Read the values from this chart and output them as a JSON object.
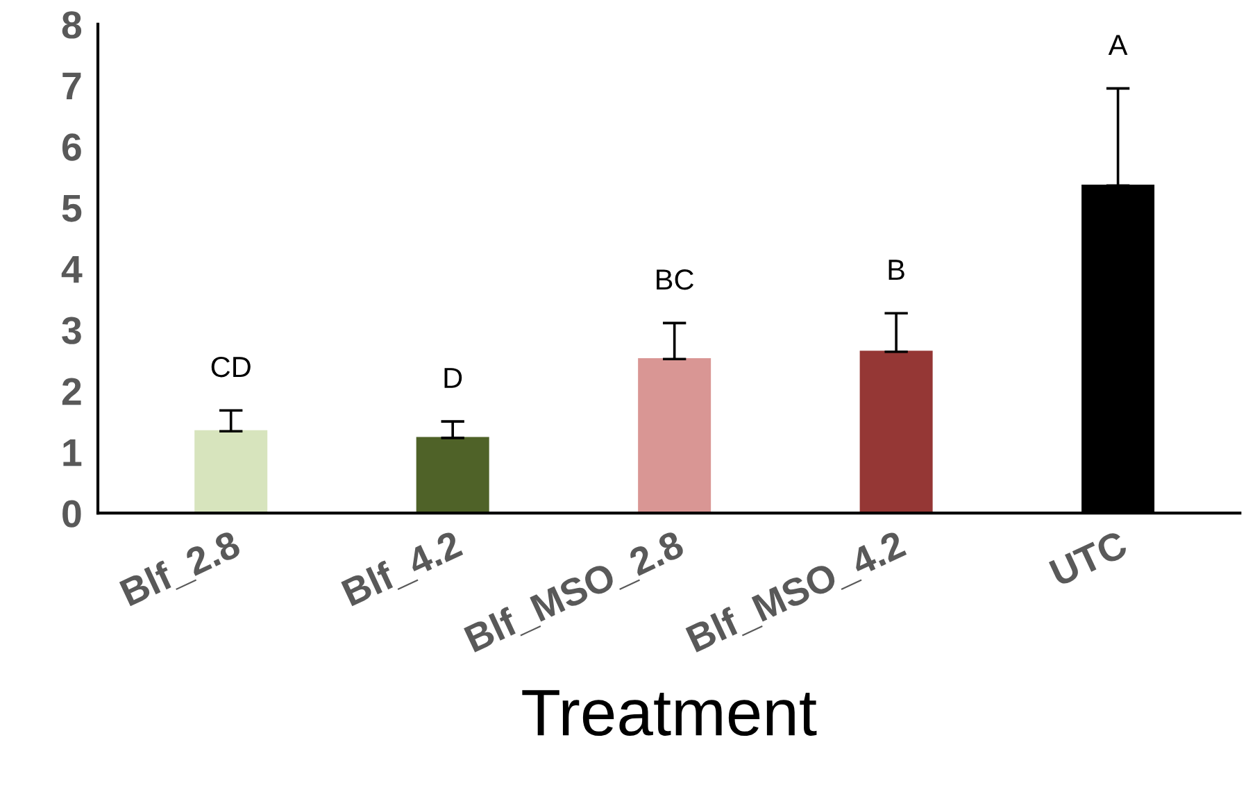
{
  "chart_data": {
    "type": "bar",
    "xlabel": "Treatment",
    "categories": [
      "Blf_2.8",
      "Blf_4.2",
      "Blf_MSO_2.8",
      "Blf_MSO_4.2",
      "UTC"
    ],
    "values": [
      1.34,
      1.23,
      2.52,
      2.64,
      5.36
    ],
    "colors": [
      "#d7e4bd",
      "#4f6228",
      "#d99694",
      "#953735",
      "#000000"
    ],
    "errors": [
      [
        1.34,
        1.68
      ],
      [
        1.23,
        1.5
      ],
      [
        2.52,
        3.11
      ],
      [
        2.64,
        3.27
      ],
      [
        5.36,
        6.95
      ]
    ],
    "ylim": [
      0,
      8
    ],
    "yticks": [
      0,
      1,
      2,
      3,
      4,
      5,
      6,
      7,
      8
    ],
    "grid": false,
    "legend": false,
    "annotations": [
      "CD",
      "D",
      "BC",
      "B",
      "A"
    ]
  }
}
